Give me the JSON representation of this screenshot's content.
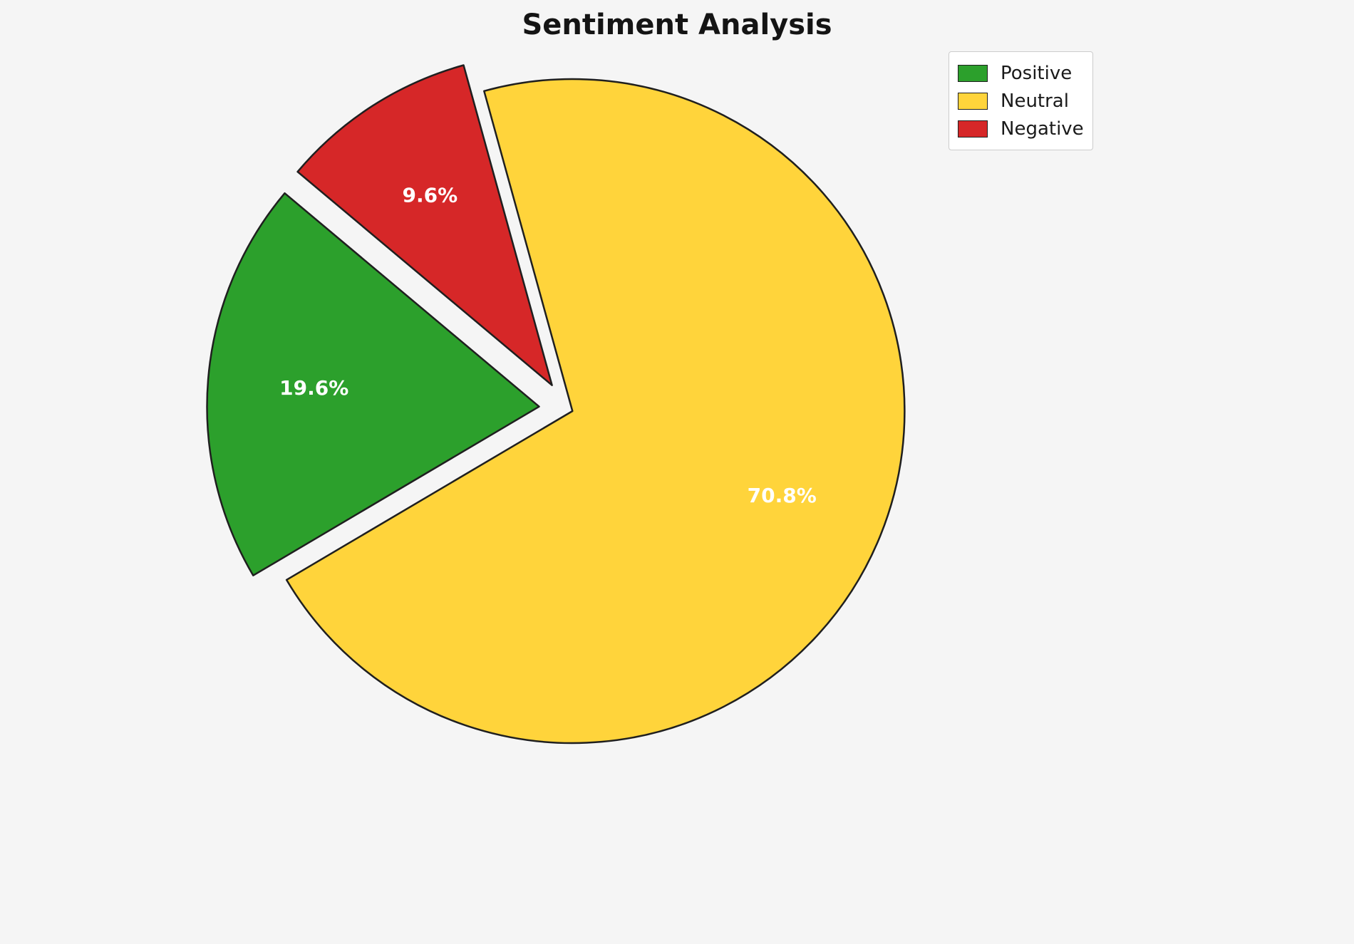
{
  "chart_data": {
    "type": "pie",
    "title": "Sentiment Analysis",
    "labels": [
      "Positive",
      "Neutral",
      "Negative"
    ],
    "values": [
      19.6,
      70.8,
      9.6
    ],
    "value_labels": [
      "19.6%",
      "70.8%",
      "9.6%"
    ],
    "colors": [
      "#2ca02c",
      "#ffd43b",
      "#d62728"
    ],
    "edge_color": "#1f1f1f",
    "label_color": "#ffffff",
    "background_color": "#f5f5f5",
    "startangle": 140,
    "counterclockwise": true,
    "explode": [
      0.085,
      0.017,
      0.085
    ],
    "pctdistance": 0.68,
    "legend_position": "upper right",
    "legend_entries": [
      "Positive",
      "Neutral",
      "Negative"
    ]
  }
}
